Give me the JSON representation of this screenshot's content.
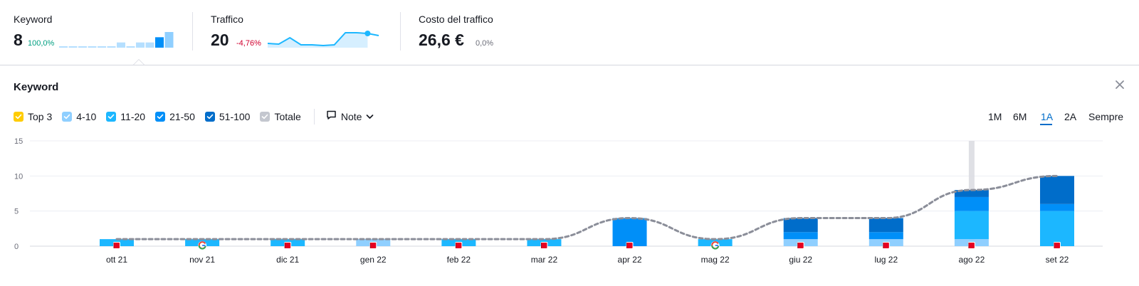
{
  "metrics": [
    {
      "title": "Keyword",
      "value": "8",
      "delta": "100,0%",
      "delta_tone": "positive",
      "sparkline": [
        0,
        0,
        0,
        0,
        0,
        0,
        1,
        0,
        1,
        1,
        2,
        3
      ]
    },
    {
      "title": "Traffico",
      "value": "20",
      "delta": "-4,76%",
      "delta_tone": "negative",
      "sparkline": [
        6,
        5,
        14,
        4,
        4,
        3,
        4,
        21,
        21,
        20,
        17
      ]
    },
    {
      "title": "Costo del traffico",
      "value": "26,6 €",
      "delta": "0,0%",
      "delta_tone": "neutral"
    }
  ],
  "panel": {
    "title": "Keyword",
    "close_icon": "close-icon",
    "filters": [
      {
        "label": "Top 3",
        "checked": true,
        "color": "#ffcc00"
      },
      {
        "label": "4-10",
        "checked": true,
        "color": "#8fcfff"
      },
      {
        "label": "11-20",
        "checked": true,
        "color": "#1cb7ff"
      },
      {
        "label": "21-50",
        "checked": true,
        "color": "#008ff8"
      },
      {
        "label": "51-100",
        "checked": true,
        "color": "#006dca"
      },
      {
        "label": "Totale",
        "checked": true,
        "color": "#c4c7cf"
      }
    ],
    "note_button": {
      "label": "Note",
      "icon": "note-icon",
      "chevron": "chevron-down-icon"
    },
    "periods": [
      {
        "label": "1M",
        "active": false
      },
      {
        "label": "6M",
        "active": false
      },
      {
        "label": "1A",
        "active": true
      },
      {
        "label": "2A",
        "active": false
      },
      {
        "label": "Sempre",
        "active": false
      }
    ]
  },
  "chart_data": {
    "type": "bar",
    "stacked": true,
    "categories": [
      "ott 21",
      "nov 21",
      "dic 21",
      "gen 22",
      "feb 22",
      "mar 22",
      "apr 22",
      "mag 22",
      "giu 22",
      "lug 22",
      "ago 22",
      "set 22"
    ],
    "yticks": [
      0,
      5,
      10,
      15
    ],
    "ylim": [
      0,
      15
    ],
    "series": [
      {
        "name": "Top 3",
        "color": "#ffcc00",
        "values": [
          0,
          0,
          0,
          0,
          0,
          0,
          0,
          0,
          0,
          0,
          0,
          0
        ]
      },
      {
        "name": "4-10",
        "color": "#8fcfff",
        "values": [
          0,
          0,
          0,
          1,
          0,
          0,
          0,
          0,
          1,
          1,
          1,
          0
        ]
      },
      {
        "name": "11-20",
        "color": "#1cb7ff",
        "values": [
          1,
          1,
          1,
          0,
          1,
          1,
          0,
          1,
          0,
          0,
          4,
          5
        ]
      },
      {
        "name": "21-50",
        "color": "#008ff8",
        "values": [
          0,
          0,
          0,
          0,
          0,
          0,
          4,
          0,
          1,
          1,
          2,
          1
        ]
      },
      {
        "name": "51-100",
        "color": "#006dca",
        "values": [
          0,
          0,
          0,
          0,
          0,
          0,
          0,
          0,
          2,
          2,
          1,
          4
        ]
      }
    ],
    "total_line": {
      "name": "Totale",
      "color": "#8b8e99",
      "style": "dashed",
      "values": [
        1,
        1,
        1,
        1,
        1,
        1,
        4,
        1,
        4,
        4,
        8,
        10
      ]
    },
    "note_markers": [
      {
        "category": "ott 21",
        "icon": "red-flag-icon"
      },
      {
        "category": "nov 21",
        "icon": "google-icon"
      },
      {
        "category": "dic 21",
        "icon": "red-flag-icon"
      },
      {
        "category": "gen 22",
        "icon": "red-flag-icon"
      },
      {
        "category": "feb 22",
        "icon": "red-flag-icon"
      },
      {
        "category": "mar 22",
        "icon": "red-flag-icon"
      },
      {
        "category": "apr 22",
        "icon": "red-flag-icon"
      },
      {
        "category": "mag 22",
        "icon": "google-icon"
      },
      {
        "category": "giu 22",
        "icon": "red-flag-icon"
      },
      {
        "category": "lug 22",
        "icon": "red-flag-icon"
      },
      {
        "category": "ago 22",
        "icon": "red-flag-icon"
      },
      {
        "category": "set 22",
        "icon": "red-flag-icon"
      }
    ],
    "hover_category": "ago 22",
    "grid": true
  }
}
